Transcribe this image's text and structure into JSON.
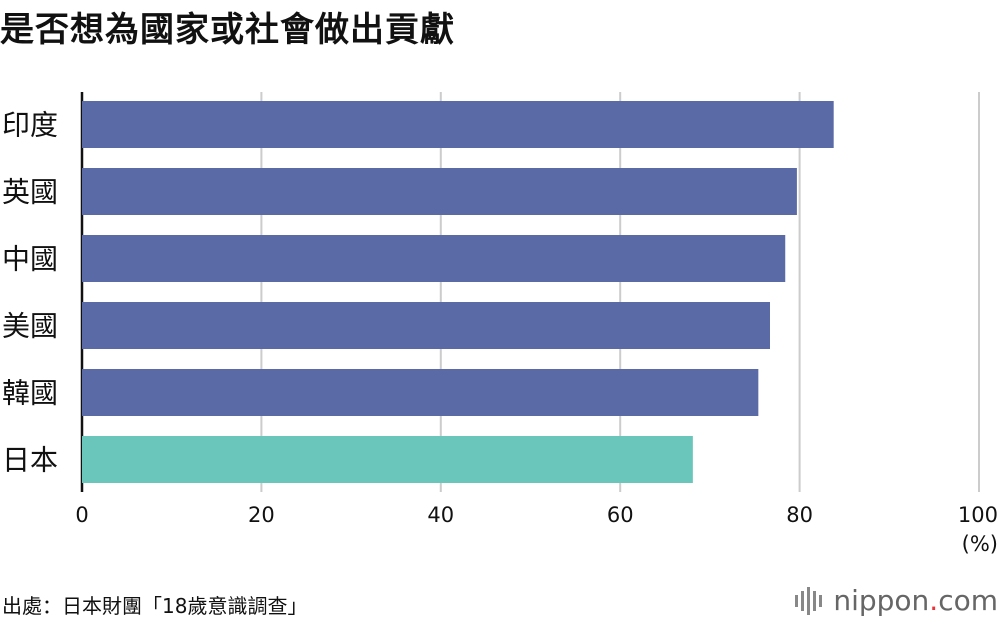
{
  "title": "是否想為國家或社會做出貢獻",
  "source": "出處：日本財團「18歲意識調查」",
  "logo": {
    "prefix": "nippon",
    "dot": ".",
    "suffix": "com"
  },
  "chart_data": {
    "type": "bar",
    "orientation": "horizontal",
    "categories": [
      "印度",
      "英國",
      "中國",
      "美國",
      "韓國",
      "日本"
    ],
    "values": [
      83.8,
      79.7,
      78.4,
      76.7,
      75.4,
      68.1
    ],
    "bar_colors": [
      "#5a6aa6",
      "#5a6aa6",
      "#5a6aa6",
      "#5a6aa6",
      "#5a6aa6",
      "#6ac6bb"
    ],
    "x_ticks": [
      0,
      20,
      40,
      60,
      80,
      100
    ],
    "xlim": [
      0,
      100
    ],
    "unit": "(%)",
    "grid": true,
    "legend": "none"
  }
}
